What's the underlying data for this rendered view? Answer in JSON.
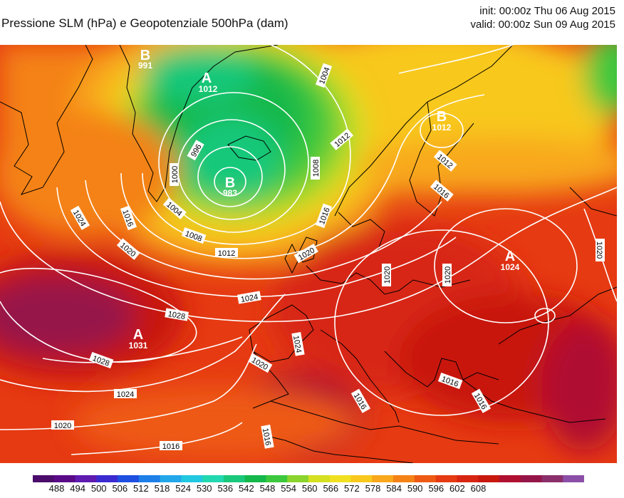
{
  "header": {
    "title": "Pressione SLM (hPa) e Geopotenziale 500hPa (dam)",
    "init": "init: 00:00z Thu 06 Aug 2015",
    "valid": "valid: 00:00z Sun 09 Aug 2015"
  },
  "pressure_centers": [
    {
      "letter": "B",
      "value": "983"
    },
    {
      "letter": "A",
      "value": "1012"
    },
    {
      "letter": "B",
      "value": "991"
    },
    {
      "letter": "B",
      "value": "1012"
    },
    {
      "letter": "A",
      "value": "1024"
    },
    {
      "letter": "A",
      "value": "1031"
    }
  ],
  "isobar_labels": [
    "996",
    "1000",
    "1004",
    "1008",
    "1012",
    "1016",
    "1020",
    "1024",
    "1028"
  ],
  "colorbar": {
    "ticks": [
      488,
      494,
      500,
      506,
      512,
      518,
      524,
      530,
      536,
      542,
      548,
      554,
      560,
      566,
      572,
      578,
      584,
      590,
      596,
      602,
      608
    ],
    "colors": [
      "#4b0c6b",
      "#5a0a87",
      "#5f1bb0",
      "#3a2ad0",
      "#1f4fe0",
      "#1f7fe8",
      "#22a8ea",
      "#21c8e0",
      "#22d8b0",
      "#19c87a",
      "#14b84a",
      "#3cc83c",
      "#8bd42d",
      "#d4e020",
      "#f0e020",
      "#f8c81c",
      "#f8a81a",
      "#f48216",
      "#ee5a14",
      "#e63a12",
      "#d82512",
      "#c8180e",
      "#b01030",
      "#961548",
      "#8a2f6a",
      "#8c4fa8"
    ]
  },
  "colors": {
    "isobar": "#ffffff",
    "coast": "#000000"
  }
}
